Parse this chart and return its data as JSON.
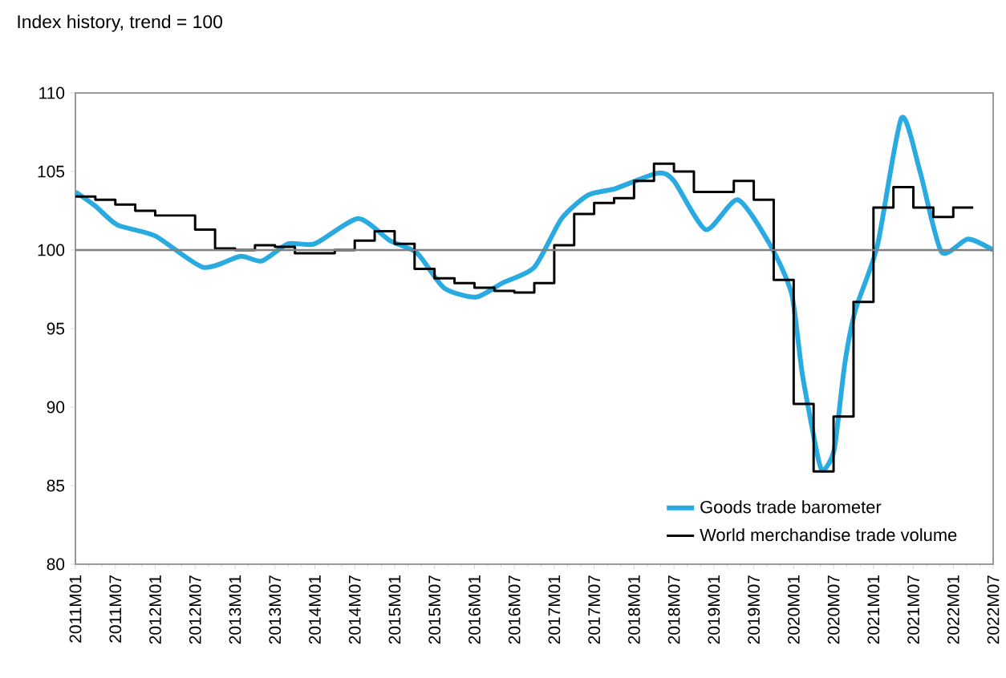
{
  "chart_data": {
    "type": "line",
    "title": "Index history, trend = 100",
    "xlim": [
      "2011-01",
      "2022-07"
    ],
    "xticks": [
      {
        "value": "2011-01",
        "label": "2011M01"
      },
      {
        "value": "2011-07",
        "label": "2011M07"
      },
      {
        "value": "2012-01",
        "label": "2012M01"
      },
      {
        "value": "2012-07",
        "label": "2012M07"
      },
      {
        "value": "2013-01",
        "label": "2013M01"
      },
      {
        "value": "2013-07",
        "label": "2013M07"
      },
      {
        "value": "2014-01",
        "label": "2014M01"
      },
      {
        "value": "2014-07",
        "label": "2014M07"
      },
      {
        "value": "2015-01",
        "label": "2015M01"
      },
      {
        "value": "2015-07",
        "label": "2015M07"
      },
      {
        "value": "2016-01",
        "label": "2016M01"
      },
      {
        "value": "2016-07",
        "label": "2016M07"
      },
      {
        "value": "2017-01",
        "label": "2017M01"
      },
      {
        "value": "2017-07",
        "label": "2017M07"
      },
      {
        "value": "2018-01",
        "label": "2018M01"
      },
      {
        "value": "2018-07",
        "label": "2018M07"
      },
      {
        "value": "2019-01",
        "label": "2019M01"
      },
      {
        "value": "2019-07",
        "label": "2019M07"
      },
      {
        "value": "2020-01",
        "label": "2020M01"
      },
      {
        "value": "2020-07",
        "label": "2020M07"
      },
      {
        "value": "2021-01",
        "label": "2021M01"
      },
      {
        "value": "2021-07",
        "label": "2021M07"
      },
      {
        "value": "2022-01",
        "label": "2022M01"
      },
      {
        "value": "2022-07",
        "label": "2022M07"
      }
    ],
    "ylim": [
      80,
      110
    ],
    "yticks": [
      80,
      85,
      90,
      95,
      100,
      105,
      110
    ],
    "ref_lines": [
      {
        "axis": "y",
        "value": 100,
        "color": "#808080"
      }
    ],
    "legend": "bottom right",
    "series": [
      {
        "name": "Goods trade barometer",
        "type": "line",
        "color": "#29abe2",
        "x": [
          "2011-01",
          "2011-04",
          "2011-07-10",
          "2012-01",
          "2012-08-07",
          "2013-01-25",
          "2013-05",
          "2013-09",
          "2014-01",
          "2014-07-16",
          "2014-12-10",
          "2015-04-13",
          "2015-08-13",
          "2016-01-07",
          "2016-05-07",
          "2016-10",
          "2017-02-04",
          "2017-06-04",
          "2017-10-04",
          "2018-04-19",
          "2018-07",
          "2018-11-25",
          "2019-04-19",
          "2019-09-16",
          "2019-12-22",
          "2020-02-10",
          "2020-04-22",
          "2020-05-16",
          "2020-07-04",
          "2020-08-22",
          "2020-10-10",
          "2021-01-19",
          "2021-05-07",
          "2021-08",
          "2021-11-07",
          "2022-03-07",
          "2022-07"
        ],
        "values": [
          103.7,
          102.8,
          101.6,
          100.9,
          98.9,
          99.6,
          99.3,
          100.4,
          100.4,
          102.0,
          100.6,
          99.8,
          97.6,
          97.0,
          97.9,
          98.9,
          102.0,
          103.5,
          103.9,
          104.9,
          104.4,
          101.3,
          103.2,
          100.3,
          97.2,
          92.1,
          86.7,
          86.0,
          87.3,
          92.8,
          96.2,
          100.3,
          108.4,
          105.0,
          99.9,
          100.7,
          100.0
        ]
      },
      {
        "name": "World merchandise trade volume",
        "type": "step",
        "color": "#000000",
        "x": [
          "2011-01",
          "2011-04",
          "2011-07",
          "2011-10",
          "2012-01",
          "2012-04",
          "2012-07",
          "2012-10",
          "2013-01",
          "2013-04",
          "2013-07",
          "2013-10",
          "2014-01",
          "2014-04",
          "2014-07",
          "2014-10",
          "2015-01",
          "2015-04",
          "2015-07",
          "2015-10",
          "2016-01",
          "2016-04",
          "2016-07",
          "2016-10",
          "2017-01",
          "2017-04",
          "2017-07",
          "2017-10",
          "2018-01",
          "2018-04",
          "2018-07",
          "2018-10",
          "2019-01",
          "2019-04",
          "2019-07",
          "2019-10",
          "2020-01",
          "2020-04",
          "2020-07",
          "2020-10",
          "2021-01",
          "2021-04",
          "2021-07",
          "2021-10",
          "2022-01",
          "2022-04"
        ],
        "values": [
          103.4,
          103.2,
          102.9,
          102.5,
          102.2,
          102.2,
          101.3,
          100.1,
          100.0,
          100.3,
          100.2,
          99.8,
          99.8,
          100.0,
          100.6,
          101.2,
          100.4,
          98.8,
          98.2,
          97.9,
          97.6,
          97.4,
          97.3,
          97.9,
          100.3,
          102.3,
          103.0,
          103.3,
          104.4,
          105.5,
          105.0,
          103.7,
          103.7,
          104.4,
          103.2,
          98.1,
          90.2,
          85.9,
          89.4,
          96.7,
          102.7,
          104.0,
          102.7,
          102.1,
          102.7,
          102.7
        ]
      }
    ]
  }
}
